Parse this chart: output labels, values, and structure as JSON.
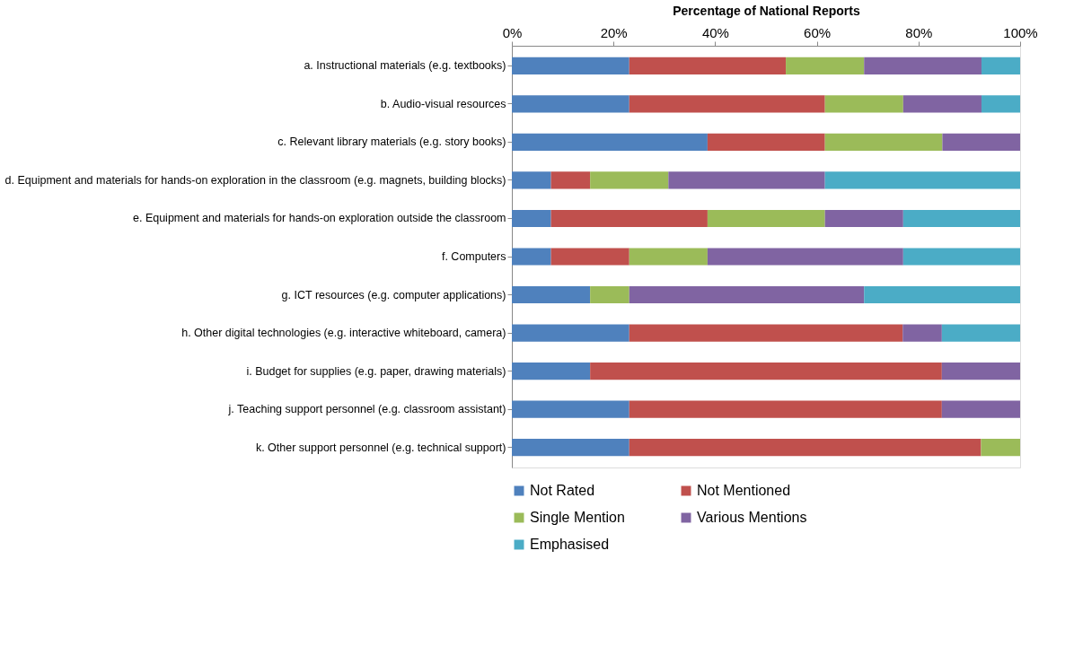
{
  "chart_data": {
    "type": "bar",
    "orientation": "horizontal",
    "stacked": true,
    "xlabel": "Percentage of National Reports",
    "categories": [
      "a. Instructional materials (e.g. textbooks)",
      "b. Audio-visual resources",
      "c. Relevant library materials (e.g. story books)",
      "d. Equipment and materials for hands-on exploration in the classroom (e.g. magnets, building blocks)",
      "e. Equipment and materials for hands-on exploration outside the classroom",
      "f. Computers",
      "g. ICT resources (e.g. computer applications)",
      "h. Other digital technologies (e.g. interactive whiteboard, camera)",
      "i. Budget for supplies (e.g. paper, drawing materials)",
      "j. Teaching support personnel (e.g. classroom assistant)",
      "k. Other support personnel (e.g. technical support)"
    ],
    "series": [
      {
        "name": "Not Rated",
        "color": "#4f81bd",
        "values": [
          23.1,
          23.1,
          38.5,
          7.7,
          7.7,
          7.7,
          15.4,
          23.1,
          15.4,
          23.1,
          23.1
        ]
      },
      {
        "name": "Not Mentioned",
        "color": "#c0504d",
        "values": [
          30.8,
          38.5,
          23.1,
          7.7,
          30.8,
          15.4,
          null,
          53.8,
          69.2,
          61.5,
          69.2
        ]
      },
      {
        "name": "Single Mention",
        "color": "#9bbb59",
        "values": [
          15.4,
          15.4,
          23.1,
          15.4,
          23.1,
          15.4,
          7.7,
          null,
          null,
          null,
          7.7
        ]
      },
      {
        "name": "Various Mentions",
        "color": "#8064a2",
        "values": [
          23.1,
          15.4,
          15.3,
          30.8,
          15.4,
          38.5,
          46.2,
          7.7,
          15.4,
          15.4,
          null
        ]
      },
      {
        "name": "Emphasised",
        "color": "#4bacc6",
        "values": [
          7.6,
          7.6,
          null,
          38.4,
          23.0,
          23.0,
          30.7,
          15.4,
          null,
          null,
          null
        ]
      }
    ],
    "xlim": [
      0,
      100
    ],
    "xticks": [
      {
        "value": 0,
        "label": "0%"
      },
      {
        "value": 20,
        "label": "20%"
      },
      {
        "value": 40,
        "label": "40%"
      },
      {
        "value": 60,
        "label": "60%"
      },
      {
        "value": 80,
        "label": "80%"
      },
      {
        "value": 100,
        "label": "100%"
      }
    ],
    "grid": false,
    "legend": "bottom"
  }
}
